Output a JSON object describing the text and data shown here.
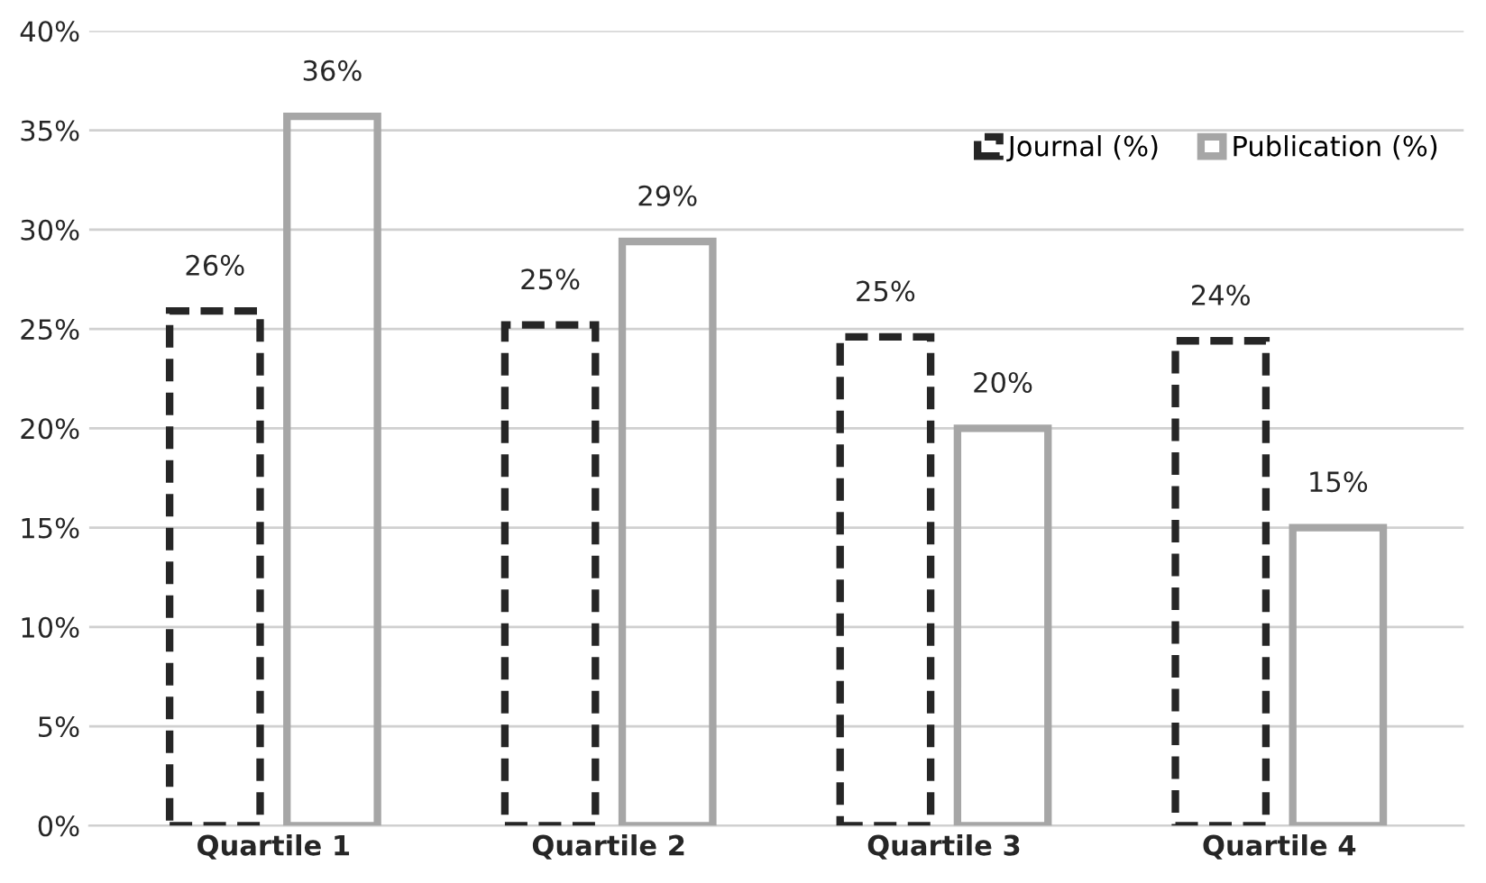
{
  "chart_data": {
    "type": "bar",
    "categories": [
      "Quartile 1",
      "Quartile 2",
      "Quartile 3",
      "Quartile 4"
    ],
    "series": [
      {
        "name": "Journal (%)",
        "color": "#262626",
        "line_style": "dashed",
        "values": [
          25.9,
          25.2,
          24.6,
          24.4
        ],
        "value_labels": [
          "26%",
          "25%",
          "25%",
          "24%"
        ]
      },
      {
        "name": "Publication (%)",
        "color": "#a6a6a6",
        "line_style": "solid",
        "values": [
          35.7,
          29.4,
          20.0,
          15.0
        ],
        "value_labels": [
          "36%",
          "29%",
          "20%",
          "15%"
        ]
      }
    ],
    "ylim": [
      0,
      40
    ],
    "yticks": [
      {
        "value": 0,
        "label": "0%"
      },
      {
        "value": 5,
        "label": "5%"
      },
      {
        "value": 10,
        "label": "10%"
      },
      {
        "value": 15,
        "label": "15%"
      },
      {
        "value": 20,
        "label": "20%"
      },
      {
        "value": 25,
        "label": "25%"
      },
      {
        "value": 30,
        "label": "30%"
      },
      {
        "value": 35,
        "label": "35%"
      },
      {
        "value": 40,
        "label": "40%"
      }
    ],
    "grid": "y",
    "legend": "top right"
  }
}
